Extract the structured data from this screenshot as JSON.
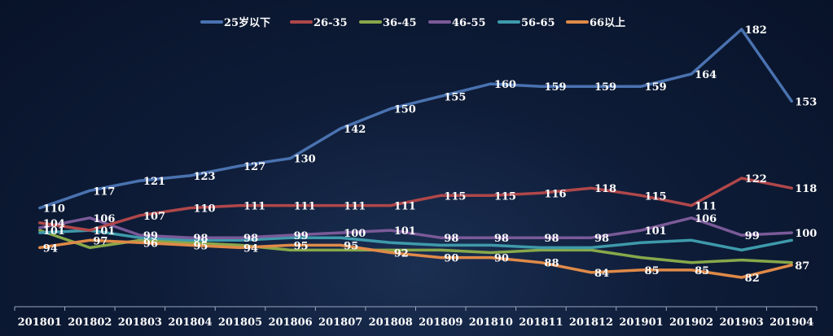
{
  "chart_data": {
    "type": "line",
    "title": "",
    "xlabel": "",
    "ylabel": "",
    "categories": [
      "201801",
      "201802",
      "201803",
      "201804",
      "201805",
      "201806",
      "201807",
      "201808",
      "201809",
      "201810",
      "201811",
      "201812",
      "201901",
      "201902",
      "201903",
      "201904"
    ],
    "ylim": [
      75,
      190
    ],
    "grid": false,
    "legend": "top-center",
    "series": [
      {
        "name": "25岁以下",
        "color": "#4a72b0",
        "values": [
          110,
          117,
          121,
          123,
          127,
          130,
          142,
          150,
          155,
          160,
          159,
          159,
          159,
          164,
          182,
          153
        ],
        "labels": [
          110,
          117,
          121,
          123,
          127,
          130,
          142,
          150,
          155,
          160,
          159,
          159,
          159,
          164,
          182,
          153
        ]
      },
      {
        "name": "26-35",
        "color": "#b0474a",
        "values": [
          104,
          101,
          107,
          110,
          111,
          111,
          111,
          111,
          115,
          115,
          116,
          118,
          115,
          111,
          122,
          118
        ],
        "labels": [
          104,
          null,
          107,
          110,
          111,
          111,
          111,
          111,
          115,
          115,
          116,
          118,
          115,
          111,
          122,
          118
        ]
      },
      {
        "name": "36-45",
        "color": "#87a84a",
        "values": [
          101,
          94,
          97,
          96,
          95,
          93,
          93,
          93,
          93,
          92,
          93,
          93,
          90,
          88,
          89,
          88
        ],
        "labels": [
          101,
          null,
          null,
          null,
          null,
          null,
          null,
          null,
          null,
          null,
          null,
          null,
          null,
          null,
          null,
          null
        ]
      },
      {
        "name": "46-55",
        "color": "#7a5a98",
        "values": [
          102,
          106,
          99,
          98,
          98,
          99,
          100,
          101,
          98,
          98,
          98,
          98,
          101,
          106,
          99,
          100
        ],
        "labels": [
          null,
          106,
          99,
          98,
          98,
          99,
          100,
          101,
          98,
          98,
          98,
          98,
          101,
          106,
          99,
          100
        ]
      },
      {
        "name": "56-65",
        "color": "#3e9aab",
        "values": [
          100,
          101,
          98,
          97,
          97,
          98,
          98,
          96,
          95,
          95,
          94,
          94,
          96,
          97,
          93,
          97
        ],
        "labels": [
          null,
          101,
          null,
          null,
          null,
          null,
          null,
          null,
          null,
          null,
          null,
          null,
          null,
          null,
          null,
          null
        ]
      },
      {
        "name": "66以上",
        "color": "#e08a48",
        "values": [
          94,
          97,
          96,
          95,
          94,
          95,
          95,
          92,
          90,
          90,
          88,
          84,
          85,
          85,
          82,
          87
        ],
        "labels": [
          94,
          97,
          96,
          95,
          94,
          95,
          95,
          92,
          90,
          90,
          88,
          84,
          85,
          85,
          82,
          87
        ]
      }
    ]
  }
}
